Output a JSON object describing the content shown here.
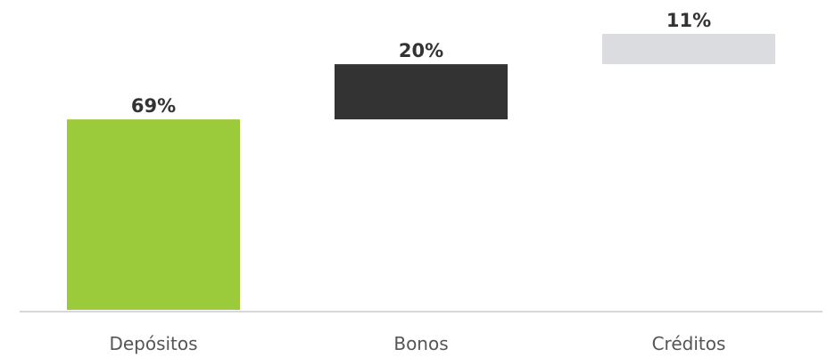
{
  "chart_data": {
    "type": "bar",
    "subtype": "waterfall",
    "categories": [
      "Depósitos",
      "Bonos",
      "Créditos"
    ],
    "values": [
      69,
      20,
      11
    ],
    "value_labels": [
      "69%",
      "20%",
      "11%"
    ],
    "colors": [
      "#9BCB3B",
      "#333333",
      "#DADCDF"
    ],
    "ylim": [
      0,
      100
    ],
    "unit": "%",
    "grid": false,
    "legend": "none"
  }
}
